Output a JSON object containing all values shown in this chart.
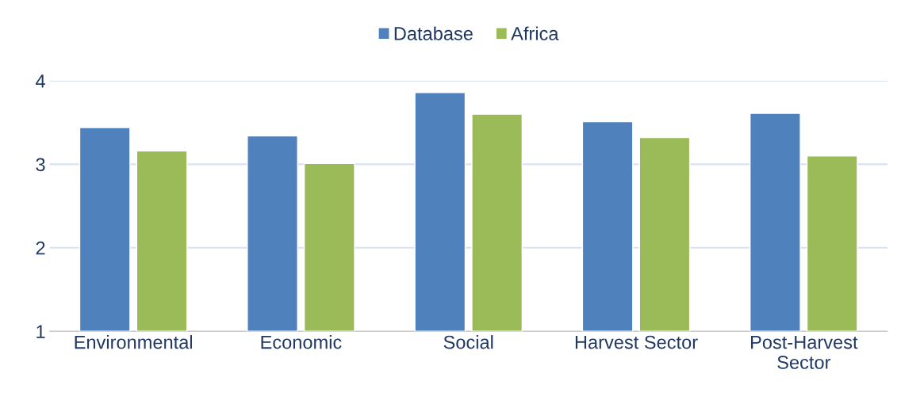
{
  "chart_data": {
    "type": "bar",
    "categories": [
      "Environmental",
      "Economic",
      "Social",
      "Harvest Sector",
      "Post-Harvest\nSector"
    ],
    "series": [
      {
        "name": "Database",
        "color": "#4f81bd",
        "values": [
          3.44,
          3.34,
          3.86,
          3.51,
          3.61
        ]
      },
      {
        "name": "Africa",
        "color": "#9bbb59",
        "values": [
          3.16,
          3.01,
          3.6,
          3.32,
          3.1
        ]
      }
    ],
    "ylim": [
      1,
      4
    ],
    "yticks": [
      1,
      2,
      3,
      4
    ],
    "grid": "y",
    "legend": "top"
  }
}
